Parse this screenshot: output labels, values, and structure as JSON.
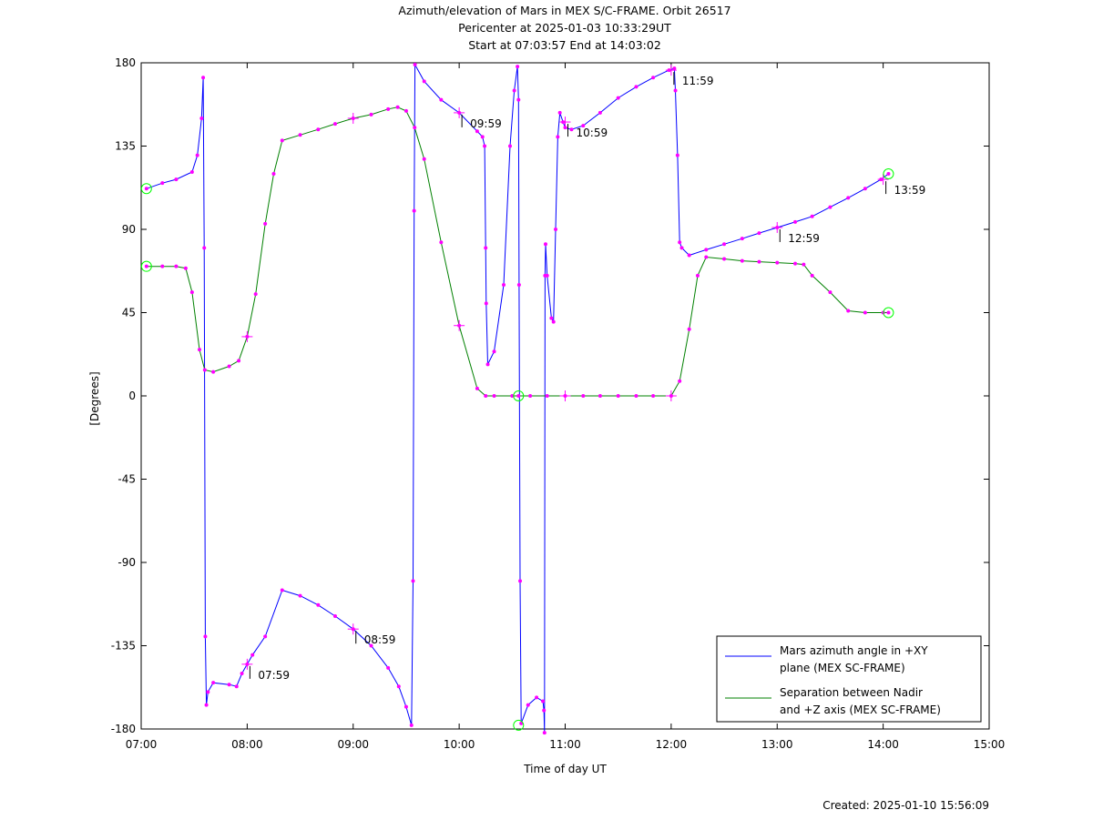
{
  "chart_data": {
    "type": "line",
    "title": [
      "Azimuth/elevation of Mars in MEX S/C-FRAME.  Orbit 26517",
      "Pericenter at 2025-01-03 10:33:29UT",
      "Start at 07:03:57 End at 14:03:02"
    ],
    "xlabel": "Time of day UT",
    "ylabel": "[Degrees]",
    "xlim": [
      7.0,
      15.0
    ],
    "ylim": [
      -180,
      180
    ],
    "x_ticks": [
      7,
      8,
      9,
      10,
      11,
      12,
      13,
      14,
      15
    ],
    "x_tick_labels": [
      "07:00",
      "08:00",
      "09:00",
      "10:00",
      "11:00",
      "12:00",
      "13:00",
      "14:00",
      "15:00"
    ],
    "y_ticks": [
      180,
      135,
      90,
      45,
      0,
      -45,
      -90,
      -135,
      -180
    ],
    "y_tick_labels": [
      "180",
      "135",
      "90",
      "45",
      "0",
      "-45",
      "-90",
      "-135",
      "-180"
    ],
    "grid": false,
    "legend_placement": "bottom-right",
    "series": [
      {
        "name": "Mars azimuth angle in +XY plane (MEX SC-FRAME)",
        "legend_lines": [
          "Mars azimuth angle in +XY",
          "plane (MEX SC-FRAME)"
        ],
        "color": "#0000ff",
        "points": [
          [
            7.05,
            112
          ],
          [
            7.2,
            115
          ],
          [
            7.33,
            117
          ],
          [
            7.48,
            121
          ],
          [
            7.53,
            130
          ],
          [
            7.57,
            150
          ],
          [
            7.585,
            172
          ],
          [
            7.595,
            80
          ],
          [
            7.605,
            -130
          ],
          [
            7.615,
            -167
          ],
          [
            7.63,
            -160
          ],
          [
            7.68,
            -155
          ],
          [
            7.83,
            -156
          ],
          [
            7.9,
            -157
          ],
          [
            7.95,
            -150
          ],
          [
            8.0,
            -145
          ],
          [
            8.05,
            -140
          ],
          [
            8.17,
            -130
          ],
          [
            8.33,
            -105
          ],
          [
            8.5,
            -108
          ],
          [
            8.67,
            -113
          ],
          [
            8.83,
            -119
          ],
          [
            9.0,
            -126
          ],
          [
            9.17,
            -135
          ],
          [
            9.33,
            -147
          ],
          [
            9.43,
            -157
          ],
          [
            9.5,
            -168
          ],
          [
            9.55,
            -178
          ],
          [
            9.565,
            -100
          ],
          [
            9.575,
            100
          ],
          [
            9.583,
            179
          ],
          [
            9.67,
            170
          ],
          [
            9.83,
            160
          ],
          [
            10.0,
            153
          ],
          [
            10.17,
            143
          ],
          [
            10.22,
            140
          ],
          [
            10.24,
            135
          ],
          [
            10.25,
            80
          ],
          [
            10.255,
            50
          ],
          [
            10.27,
            17
          ],
          [
            10.33,
            24
          ],
          [
            10.42,
            60
          ],
          [
            10.48,
            135
          ],
          [
            10.52,
            165
          ],
          [
            10.55,
            178
          ],
          [
            10.56,
            160
          ],
          [
            10.565,
            60
          ],
          [
            10.575,
            -100
          ],
          [
            10.585,
            -177
          ],
          [
            10.65,
            -167
          ],
          [
            10.73,
            -163
          ],
          [
            10.79,
            -165
          ],
          [
            10.8,
            -170
          ],
          [
            10.805,
            -182
          ],
          [
            10.81,
            65
          ],
          [
            10.815,
            82
          ],
          [
            10.83,
            65
          ],
          [
            10.87,
            42
          ],
          [
            10.89,
            40
          ],
          [
            10.91,
            90
          ],
          [
            10.93,
            140
          ],
          [
            10.95,
            153
          ],
          [
            10.98,
            148
          ],
          [
            11.0,
            145
          ],
          [
            11.06,
            144
          ],
          [
            11.17,
            146
          ],
          [
            11.33,
            153
          ],
          [
            11.5,
            161
          ],
          [
            11.67,
            167
          ],
          [
            11.83,
            172
          ],
          [
            11.98,
            176
          ],
          [
            12.03,
            177
          ],
          [
            12.04,
            165
          ],
          [
            12.06,
            130
          ],
          [
            12.08,
            83
          ],
          [
            12.1,
            80
          ],
          [
            12.17,
            76
          ],
          [
            12.33,
            79
          ],
          [
            12.5,
            82
          ],
          [
            12.67,
            85
          ],
          [
            12.83,
            88
          ],
          [
            13.0,
            91
          ],
          [
            13.17,
            94
          ],
          [
            13.33,
            97
          ],
          [
            13.5,
            102
          ],
          [
            13.67,
            107
          ],
          [
            13.83,
            112
          ],
          [
            13.98,
            117
          ],
          [
            14.05,
            120
          ]
        ]
      },
      {
        "name": "Separation between Nadir and +Z axis (MEX SC-FRAME)",
        "legend_lines": [
          "Separation between Nadir",
          "and +Z axis (MEX SC-FRAME)"
        ],
        "color": "#008000",
        "points": [
          [
            7.05,
            70
          ],
          [
            7.2,
            70
          ],
          [
            7.33,
            70
          ],
          [
            7.42,
            69
          ],
          [
            7.48,
            56
          ],
          [
            7.55,
            25
          ],
          [
            7.6,
            14
          ],
          [
            7.68,
            13
          ],
          [
            7.83,
            16
          ],
          [
            7.92,
            19
          ],
          [
            8.0,
            32
          ],
          [
            8.08,
            55
          ],
          [
            8.17,
            93
          ],
          [
            8.25,
            120
          ],
          [
            8.33,
            138
          ],
          [
            8.5,
            141
          ],
          [
            8.67,
            144
          ],
          [
            8.83,
            147
          ],
          [
            9.0,
            150
          ],
          [
            9.17,
            152
          ],
          [
            9.33,
            155
          ],
          [
            9.42,
            156
          ],
          [
            9.5,
            154
          ],
          [
            9.58,
            145
          ],
          [
            9.67,
            128
          ],
          [
            9.83,
            83
          ],
          [
            10.0,
            38
          ],
          [
            10.17,
            4
          ],
          [
            10.25,
            0
          ],
          [
            10.33,
            0
          ],
          [
            10.5,
            0
          ],
          [
            10.56,
            0
          ],
          [
            10.67,
            0
          ],
          [
            10.83,
            0
          ],
          [
            11.0,
            0
          ],
          [
            11.17,
            0
          ],
          [
            11.33,
            0
          ],
          [
            11.5,
            0
          ],
          [
            11.67,
            0
          ],
          [
            11.83,
            0
          ],
          [
            12.0,
            0
          ],
          [
            12.08,
            8
          ],
          [
            12.17,
            36
          ],
          [
            12.25,
            65
          ],
          [
            12.33,
            75
          ],
          [
            12.5,
            74
          ],
          [
            12.67,
            73
          ],
          [
            12.83,
            72.5
          ],
          [
            13.0,
            72
          ],
          [
            13.17,
            71.5
          ],
          [
            13.25,
            71
          ],
          [
            13.33,
            65
          ],
          [
            13.5,
            56
          ],
          [
            13.67,
            46
          ],
          [
            13.83,
            45
          ],
          [
            14.0,
            45
          ],
          [
            14.05,
            45
          ]
        ]
      }
    ],
    "markers": {
      "color": "#ff00ff",
      "circle_color": "#00ff00",
      "hour_crosses": [
        [
          8.0,
          -145
        ],
        [
          9.0,
          -126
        ],
        [
          10.0,
          153
        ],
        [
          11.0,
          148
        ],
        [
          12.0,
          176
        ],
        [
          13.0,
          91
        ],
        [
          14.0,
          117
        ],
        [
          8.0,
          32
        ],
        [
          9.0,
          150
        ],
        [
          10.0,
          38
        ],
        [
          11.0,
          0
        ],
        [
          12.0,
          0
        ]
      ],
      "start_circles": [
        [
          7.05,
          112
        ],
        [
          7.05,
          70
        ]
      ],
      "pericenter_circles": [
        [
          10.56,
          0
        ],
        [
          10.56,
          -178
        ]
      ],
      "end_circles": [
        [
          14.05,
          120
        ],
        [
          14.05,
          45
        ]
      ]
    },
    "annotations": [
      {
        "label": "07:59",
        "x": 8.0,
        "y": -145
      },
      {
        "label": "08:59",
        "x": 9.0,
        "y": -126
      },
      {
        "label": "09:59",
        "x": 10.0,
        "y": 153
      },
      {
        "label": "10:59",
        "x": 11.0,
        "y": 148
      },
      {
        "label": "11:59",
        "x": 12.0,
        "y": 176
      },
      {
        "label": "12:59",
        "x": 13.0,
        "y": 91
      },
      {
        "label": "13:59",
        "x": 14.0,
        "y": 117
      }
    ]
  },
  "footer": {
    "created": "Created: 2025-01-10 15:56:09"
  }
}
